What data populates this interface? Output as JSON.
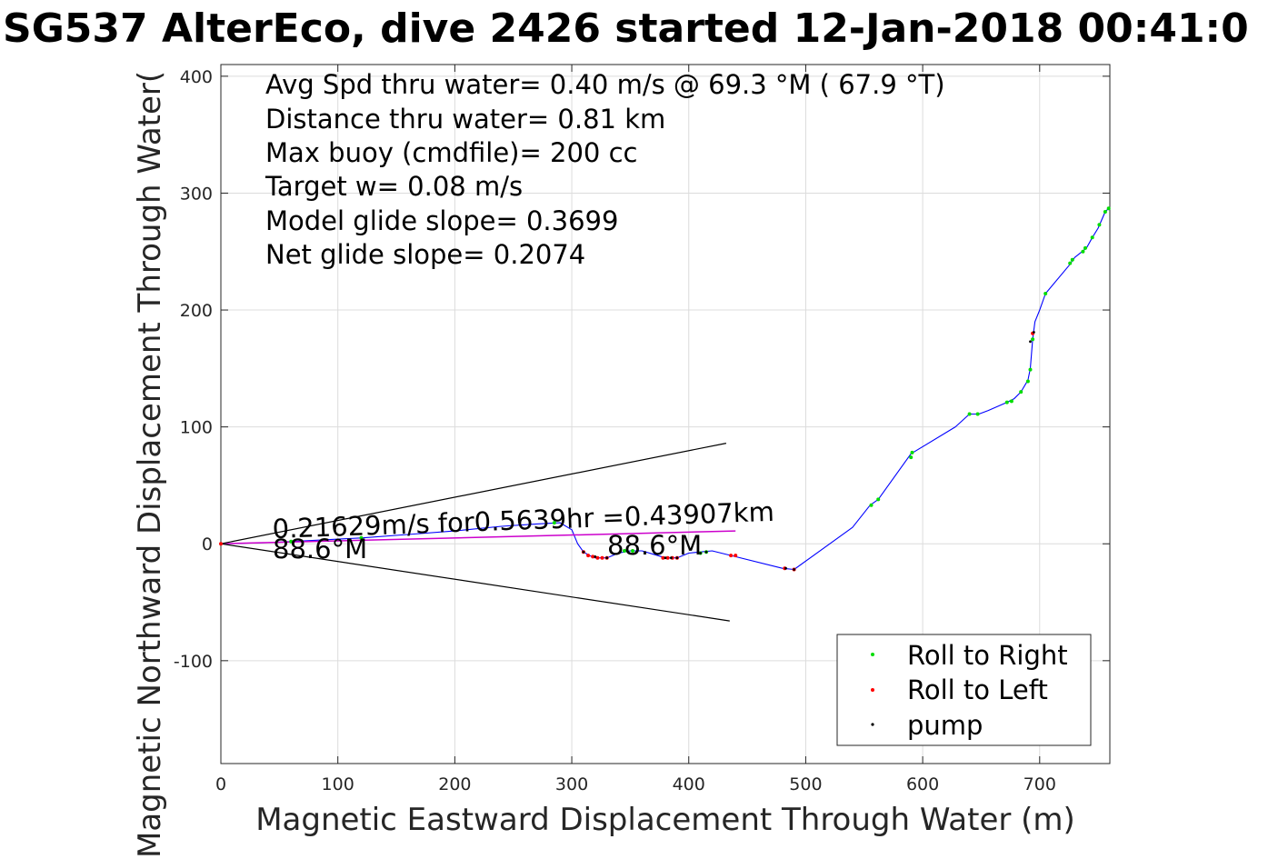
{
  "chart_data": {
    "type": "scatter",
    "title": "SG537 AlterEco, dive 2426 started 12-Jan-2018 00:41:0",
    "xlabel": "Magnetic Eastward Displacement Through Water (m)",
    "ylabel": "Magnetic Northward Displacement Through Water(",
    "xlim": [
      0,
      760
    ],
    "ylim": [
      -188,
      410
    ],
    "xticks": [
      "0",
      "100",
      "200",
      "300",
      "400",
      "500",
      "600",
      "700"
    ],
    "yticks": [
      "400",
      "300",
      "200",
      "100",
      "0",
      "-100"
    ],
    "grid": true,
    "legend_position": "bottom-right",
    "colors": {
      "track": "#0000ff",
      "roll_right": "#00dd00",
      "roll_left": "#ff0000",
      "pump": "#000000",
      "current": "#cc00cc",
      "cone": "#000000"
    },
    "stats": [
      "Avg Spd thru water=  0.40 m/s @  69.3 °M ( 67.9 °T)",
      "Distance thru water=  0.81 km",
      "Max buoy (cmdfile)= 200 cc",
      "Target w= 0.08 m/s",
      "Model glide slope= 0.3699",
      "Net glide slope= 0.2074"
    ],
    "annotations": {
      "current_label": "0.21629m/s for0.5639hr =0.43907km",
      "heading_label_1": "88.6°M",
      "heading_label_2": "88.6°M"
    },
    "legend": [
      {
        "name": "Roll to Right",
        "color": "#00dd00"
      },
      {
        "name": "Roll to Left",
        "color": "#ff0000"
      },
      {
        "name": "pump",
        "color": "#000000"
      }
    ],
    "series": [
      {
        "name": "track",
        "x": [
          0,
          40,
          80,
          120,
          160,
          200,
          240,
          270,
          290,
          300,
          305,
          310,
          315,
          320,
          330,
          340,
          350,
          360,
          370,
          380,
          390,
          400,
          410,
          420,
          440,
          480,
          490,
          540,
          555,
          562,
          590,
          628,
          640,
          648,
          656,
          672,
          678,
          684,
          690,
          692,
          694,
          696,
          700,
          705,
          725,
          730,
          740,
          745,
          750,
          756,
          760
        ],
        "y": [
          0,
          1,
          3,
          5,
          8,
          11,
          15,
          17,
          18,
          12,
          0,
          -7,
          -10,
          -12,
          -12,
          -8,
          -6,
          -6,
          -9,
          -12,
          -12,
          -8,
          -7,
          -6,
          -11,
          -21,
          -22,
          14,
          33,
          38,
          77,
          100,
          111,
          111,
          114,
          121,
          124,
          130,
          140,
          150,
          175,
          190,
          200,
          214,
          238,
          245,
          253,
          262,
          270,
          284,
          288
        ]
      },
      {
        "name": "current",
        "x": [
          0,
          440
        ],
        "y": [
          0,
          11
        ]
      },
      {
        "name": "cone-upper",
        "x": [
          0,
          432
        ],
        "y": [
          0,
          86
        ]
      },
      {
        "name": "cone-lower",
        "x": [
          0,
          435
        ],
        "y": [
          0,
          -66
        ]
      },
      {
        "name": "Roll to Right",
        "x": [
          60,
          120,
          285,
          345,
          352,
          410,
          415,
          556,
          562,
          590,
          591,
          640,
          647,
          672,
          676,
          684,
          690,
          692,
          694,
          705,
          726,
          728,
          737,
          739,
          745,
          751,
          756,
          759
        ],
        "y": [
          2,
          5,
          18,
          -6,
          -6,
          -8,
          -7,
          33,
          38,
          74,
          78,
          111,
          111,
          121,
          122,
          130,
          139,
          149,
          175,
          214,
          240,
          243,
          250,
          253,
          262,
          273,
          284,
          287
        ]
      },
      {
        "name": "Roll to Left",
        "x": [
          0,
          310,
          314,
          318,
          322,
          326,
          330,
          378,
          382,
          386,
          390,
          436,
          440,
          482,
          490,
          694
        ],
        "y": [
          0,
          -7,
          -10,
          -11,
          -12,
          -12,
          -12,
          -12,
          -12,
          -12,
          -12,
          -10,
          -10,
          -21,
          -22,
          180
        ]
      },
      {
        "name": "pump",
        "x": [
          310,
          320,
          330,
          380,
          385,
          390,
          410,
          415,
          483,
          490,
          692,
          695
        ],
        "y": [
          -7,
          -11,
          -12,
          -12,
          -12,
          -12,
          -8,
          -7,
          -21,
          -22,
          173,
          181
        ]
      }
    ]
  }
}
